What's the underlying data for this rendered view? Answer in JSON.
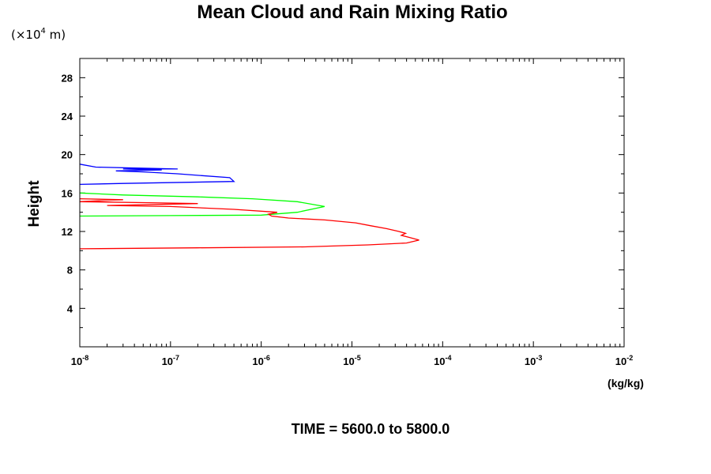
{
  "chart_data": {
    "type": "line",
    "title": "Mean Cloud and Rain Mixing Ratio",
    "ylabel": "Height",
    "y_scale_note_prefix": "(×10",
    "y_scale_note_exp": "4",
    "y_scale_note_unit": " m)",
    "xlabel_units": "(kg/kg)",
    "footer": "TIME = 5600.0 to 5800.0",
    "x_scale": "log",
    "xlim": [
      1e-08,
      0.01
    ],
    "ylim": [
      0,
      30
    ],
    "y_ticks": [
      4,
      8,
      12,
      16,
      20,
      24,
      28
    ],
    "x_ticks": [
      {
        "base": "10",
        "exp": "-8"
      },
      {
        "base": "10",
        "exp": "-7"
      },
      {
        "base": "10",
        "exp": "-6"
      },
      {
        "base": "10",
        "exp": "-5"
      },
      {
        "base": "10",
        "exp": "-4"
      },
      {
        "base": "10",
        "exp": "-3"
      },
      {
        "base": "10",
        "exp": "-2"
      }
    ],
    "series": [
      {
        "color": "#0000ff",
        "points": [
          [
            1e-08,
            16.9
          ],
          [
            3e-08,
            17.0
          ],
          [
            5e-07,
            17.2
          ],
          [
            4.5e-07,
            17.6
          ],
          [
            1.2e-07,
            18.0
          ],
          [
            5e-08,
            18.2
          ],
          [
            2.5e-08,
            18.3
          ],
          [
            8e-08,
            18.4
          ],
          [
            3e-08,
            18.5
          ],
          [
            1.2e-07,
            18.5
          ],
          [
            4e-08,
            18.6
          ],
          [
            1.5e-08,
            18.7
          ],
          [
            1e-08,
            19.0
          ]
        ]
      },
      {
        "color": "#00ff00",
        "points": [
          [
            1e-08,
            13.6
          ],
          [
            1e-07,
            13.65
          ],
          [
            1e-06,
            13.7
          ],
          [
            2.5e-06,
            14.0
          ],
          [
            5e-06,
            14.6
          ],
          [
            2.5e-06,
            15.1
          ],
          [
            8e-07,
            15.4
          ],
          [
            2e-07,
            15.6
          ],
          [
            3e-08,
            15.8
          ],
          [
            1e-08,
            16.0
          ]
        ]
      },
      {
        "color": "#ff0000",
        "points": [
          [
            1e-08,
            10.2
          ],
          [
            2e-07,
            10.3
          ],
          [
            3e-06,
            10.4
          ],
          [
            1.5e-05,
            10.6
          ],
          [
            4e-05,
            10.8
          ],
          [
            5.5e-05,
            11.1
          ],
          [
            4.2e-05,
            11.4
          ],
          [
            3.5e-05,
            11.6
          ],
          [
            3.9e-05,
            11.8
          ],
          [
            3.3e-05,
            12.0
          ],
          [
            2.4e-05,
            12.3
          ],
          [
            1.6e-05,
            12.6
          ],
          [
            1.1e-05,
            12.9
          ],
          [
            5e-06,
            13.2
          ],
          [
            2e-06,
            13.4
          ],
          [
            1.3e-06,
            13.6
          ],
          [
            1.2e-06,
            13.8
          ],
          [
            1.5e-06,
            14.0
          ],
          [
            5e-07,
            14.3
          ],
          [
            1e-07,
            14.6
          ],
          [
            2e-08,
            14.7
          ],
          [
            2e-07,
            14.9
          ],
          [
            5e-08,
            15.0
          ],
          [
            1e-08,
            15.1
          ],
          [
            3e-08,
            15.3
          ],
          [
            1e-08,
            15.4
          ]
        ]
      }
    ]
  }
}
